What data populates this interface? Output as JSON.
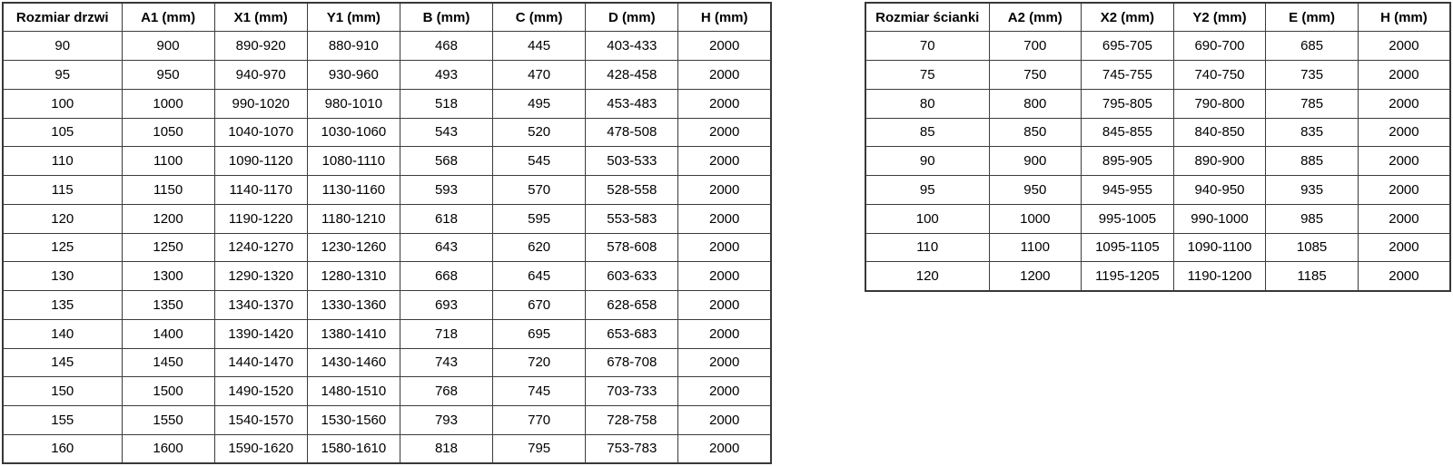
{
  "door_table": {
    "headers": [
      "Rozmiar drzwi",
      "A1 (mm)",
      "X1 (mm)",
      "Y1 (mm)",
      "B (mm)",
      "C (mm)",
      "D (mm)",
      "H (mm)"
    ],
    "rows": [
      [
        "90",
        "900",
        "890-920",
        "880-910",
        "468",
        "445",
        "403-433",
        "2000"
      ],
      [
        "95",
        "950",
        "940-970",
        "930-960",
        "493",
        "470",
        "428-458",
        "2000"
      ],
      [
        "100",
        "1000",
        "990-1020",
        "980-1010",
        "518",
        "495",
        "453-483",
        "2000"
      ],
      [
        "105",
        "1050",
        "1040-1070",
        "1030-1060",
        "543",
        "520",
        "478-508",
        "2000"
      ],
      [
        "110",
        "1100",
        "1090-1120",
        "1080-1110",
        "568",
        "545",
        "503-533",
        "2000"
      ],
      [
        "115",
        "1150",
        "1140-1170",
        "1130-1160",
        "593",
        "570",
        "528-558",
        "2000"
      ],
      [
        "120",
        "1200",
        "1190-1220",
        "1180-1210",
        "618",
        "595",
        "553-583",
        "2000"
      ],
      [
        "125",
        "1250",
        "1240-1270",
        "1230-1260",
        "643",
        "620",
        "578-608",
        "2000"
      ],
      [
        "130",
        "1300",
        "1290-1320",
        "1280-1310",
        "668",
        "645",
        "603-633",
        "2000"
      ],
      [
        "135",
        "1350",
        "1340-1370",
        "1330-1360",
        "693",
        "670",
        "628-658",
        "2000"
      ],
      [
        "140",
        "1400",
        "1390-1420",
        "1380-1410",
        "718",
        "695",
        "653-683",
        "2000"
      ],
      [
        "145",
        "1450",
        "1440-1470",
        "1430-1460",
        "743",
        "720",
        "678-708",
        "2000"
      ],
      [
        "150",
        "1500",
        "1490-1520",
        "1480-1510",
        "768",
        "745",
        "703-733",
        "2000"
      ],
      [
        "155",
        "1550",
        "1540-1570",
        "1530-1560",
        "793",
        "770",
        "728-758",
        "2000"
      ],
      [
        "160",
        "1600",
        "1590-1620",
        "1580-1610",
        "818",
        "795",
        "753-783",
        "2000"
      ]
    ]
  },
  "wall_table": {
    "headers": [
      "Rozmiar ścianki",
      "A2 (mm)",
      "X2 (mm)",
      "Y2 (mm)",
      "E (mm)",
      "H (mm)"
    ],
    "rows": [
      [
        "70",
        "700",
        "695-705",
        "690-700",
        "685",
        "2000"
      ],
      [
        "75",
        "750",
        "745-755",
        "740-750",
        "735",
        "2000"
      ],
      [
        "80",
        "800",
        "795-805",
        "790-800",
        "785",
        "2000"
      ],
      [
        "85",
        "850",
        "845-855",
        "840-850",
        "835",
        "2000"
      ],
      [
        "90",
        "900",
        "895-905",
        "890-900",
        "885",
        "2000"
      ],
      [
        "95",
        "950",
        "945-955",
        "940-950",
        "935",
        "2000"
      ],
      [
        "100",
        "1000",
        "995-1005",
        "990-1000",
        "985",
        "2000"
      ],
      [
        "110",
        "1100",
        "1095-1105",
        "1090-1100",
        "1085",
        "2000"
      ],
      [
        "120",
        "1200",
        "1195-1205",
        "1190-1200",
        "1185",
        "2000"
      ]
    ]
  },
  "colors": {
    "border": "#3c3c3c",
    "text": "#000000",
    "background": "#ffffff"
  }
}
